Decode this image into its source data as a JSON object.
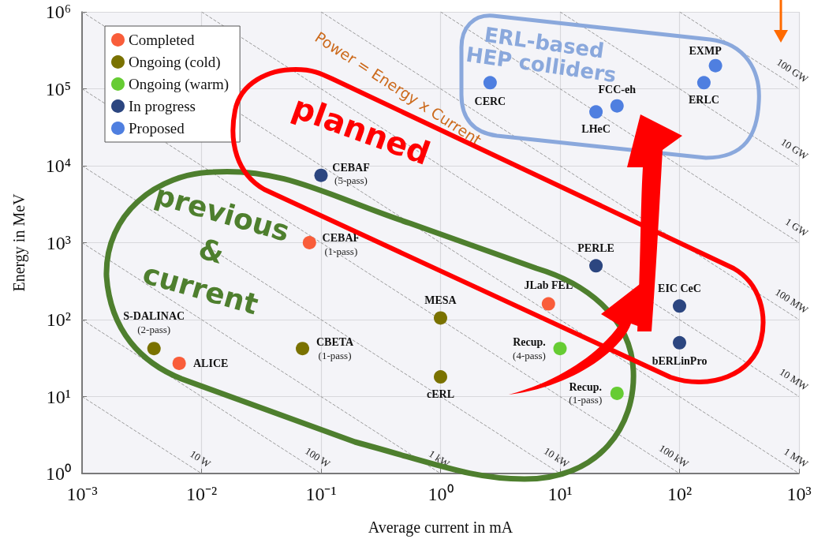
{
  "chart_data": {
    "type": "scatter",
    "xlabel": "Average current in mA",
    "ylabel": "Energy in MeV",
    "xlim": [
      0.001,
      1000
    ],
    "ylim": [
      1,
      1000000
    ],
    "xticks": [
      {
        "value": 0.001,
        "label": "10⁻³"
      },
      {
        "value": 0.01,
        "label": "10⁻²"
      },
      {
        "value": 0.1,
        "label": "10⁻¹"
      },
      {
        "value": 1,
        "label": "10⁰"
      },
      {
        "value": 10,
        "label": "10¹"
      },
      {
        "value": 100,
        "label": "10²"
      },
      {
        "value": 1000,
        "label": "10³"
      }
    ],
    "yticks": [
      {
        "value": 1,
        "label": "10⁰"
      },
      {
        "value": 10,
        "label": "10¹"
      },
      {
        "value": 100,
        "label": "10²"
      },
      {
        "value": 1000,
        "label": "10³"
      },
      {
        "value": 10000,
        "label": "10⁴"
      },
      {
        "value": 100000,
        "label": "10⁵"
      },
      {
        "value": 1000000,
        "label": "10⁶"
      }
    ],
    "log": "xy",
    "grid": true,
    "legend": "top left",
    "marker": "circle",
    "series": [
      {
        "name": "Completed",
        "color": "#f95d3a",
        "x": [
          0.08,
          0.0065,
          8
        ],
        "values": [
          1000,
          27,
          160
        ]
      },
      {
        "name": "Ongoing (cold)",
        "color": "#7a7200",
        "x": [
          0.004,
          0.07,
          1,
          1
        ],
        "values": [
          42,
          42,
          105,
          18
        ]
      },
      {
        "name": "Ongoing (warm)",
        "color": "#66cc33",
        "x": [
          10,
          30
        ],
        "values": [
          42,
          11
        ]
      },
      {
        "name": "In progress",
        "color": "#2c4680",
        "x": [
          0.1,
          20,
          100,
          100
        ],
        "values": [
          7500,
          500,
          150,
          50
        ]
      },
      {
        "name": "Proposed",
        "color": "#4f7fe0",
        "x": [
          2.6,
          20,
          30,
          160,
          200
        ],
        "values": [
          120000,
          50000,
          60000,
          120000,
          200000
        ]
      },
      {
        "type": "line",
        "name": "10 W",
        "color": "#9a9a9a",
        "line_style": "dashed",
        "marker": "none",
        "x": [
          0.001,
          0.01
        ],
        "values": [
          10,
          1
        ]
      },
      {
        "type": "line",
        "name": "100 W",
        "color": "#9a9a9a",
        "line_style": "dashed",
        "marker": "none",
        "x": [
          0.001,
          0.1
        ],
        "values": [
          100,
          1
        ]
      },
      {
        "type": "line",
        "name": "1 kW",
        "color": "#9a9a9a",
        "line_style": "dashed",
        "marker": "none",
        "x": [
          0.001,
          1
        ],
        "values": [
          1000,
          1
        ]
      },
      {
        "type": "line",
        "name": "10 kW",
        "color": "#9a9a9a",
        "line_style": "dashed",
        "marker": "none",
        "x": [
          0.001,
          10
        ],
        "values": [
          10000,
          1
        ]
      },
      {
        "type": "line",
        "name": "100 kW",
        "color": "#9a9a9a",
        "line_style": "dashed",
        "marker": "none",
        "x": [
          0.001,
          100
        ],
        "values": [
          100000,
          1
        ]
      },
      {
        "type": "line",
        "name": "1 MW",
        "color": "#9a9a9a",
        "line_style": "dashed",
        "marker": "none",
        "x": [
          0.001,
          1000
        ],
        "values": [
          1000000,
          1
        ]
      },
      {
        "type": "line",
        "name": "10 MW",
        "color": "#9a9a9a",
        "line_style": "dashed",
        "marker": "none",
        "x": [
          0.01,
          1000
        ],
        "values": [
          1000000,
          10
        ]
      },
      {
        "type": "line",
        "name": "100 MW",
        "color": "#9a9a9a",
        "line_style": "dashed",
        "marker": "none",
        "x": [
          0.1,
          1000
        ],
        "values": [
          1000000,
          100
        ]
      },
      {
        "type": "line",
        "name": "1 GW",
        "color": "#9a9a9a",
        "line_style": "dashed",
        "marker": "none",
        "x": [
          1,
          1000
        ],
        "values": [
          1000000,
          1000
        ]
      },
      {
        "type": "line",
        "name": "10 GW",
        "color": "#9a9a9a",
        "line_style": "dashed",
        "marker": "none",
        "x": [
          10,
          1000
        ],
        "values": [
          1000000,
          10000
        ]
      },
      {
        "type": "line",
        "name": "100 GW",
        "color": "#9a9a9a",
        "line_style": "dashed",
        "marker": "none",
        "x": [
          100,
          1000
        ],
        "values": [
          1000000,
          100000
        ]
      }
    ],
    "annotations": [
      "Power = Energy x Current",
      "planned",
      "previous\n&\ncurrent",
      "ERL-based\nHEP colliders",
      {
        "text": "CEBAF\n(5-pass)",
        "x": 0.1,
        "y": 7500
      },
      {
        "text": "CEBAF\n(1-pass)",
        "x": 0.08,
        "y": 1000
      },
      {
        "text": "S-DALINAC\n(2-pass)",
        "x": 0.004,
        "y": 42
      },
      {
        "text": "ALICE",
        "x": 0.0065,
        "y": 27
      },
      {
        "text": "CBETA\n(1-pass)",
        "x": 0.07,
        "y": 42
      },
      {
        "text": "MESA",
        "x": 1,
        "y": 105
      },
      {
        "text": "cERL",
        "x": 1,
        "y": 18
      },
      {
        "text": "JLab FEL",
        "x": 8,
        "y": 160
      },
      {
        "text": "Recup.\n(4-pass)",
        "x": 10,
        "y": 42
      },
      {
        "text": "Recup.\n(1-pass)",
        "x": 30,
        "y": 11
      },
      {
        "text": "PERLE",
        "x": 20,
        "y": 500
      },
      {
        "text": "EIC CeC",
        "x": 100,
        "y": 150
      },
      {
        "text": "bERLinPro",
        "x": 100,
        "y": 50
      },
      {
        "text": "CERC",
        "x": 2.6,
        "y": 120000
      },
      {
        "text": "LHeC",
        "x": 20,
        "y": 50000
      },
      {
        "text": "FCC-eh",
        "x": 30,
        "y": 60000
      },
      {
        "text": "ERLC",
        "x": 160,
        "y": 120000
      },
      {
        "text": "EXMP",
        "x": 200,
        "y": 200000
      }
    ]
  }
}
